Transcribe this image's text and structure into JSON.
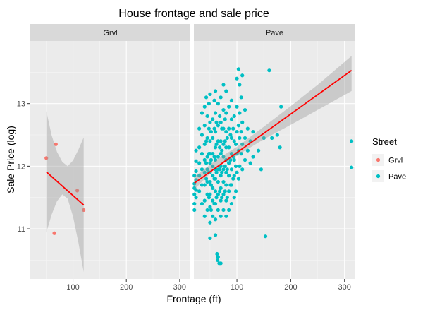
{
  "chart_data": {
    "type": "scatter",
    "title": "House frontage and sale price",
    "xlabel": "Frontage (ft)",
    "ylabel": "Sale Price (log)",
    "xlim": [
      20,
      320
    ],
    "ylim": [
      10.2,
      14.0
    ],
    "x_ticks": [
      100,
      200,
      300
    ],
    "y_ticks": [
      11,
      12,
      13
    ],
    "grid": true,
    "facet_by": "Street",
    "legend": {
      "title": "Street",
      "position": "right",
      "items": [
        {
          "label": "Grvl",
          "color": "#F8766D"
        },
        {
          "label": "Pave",
          "color": "#00BFC4"
        }
      ]
    },
    "panels": [
      {
        "label": "Grvl",
        "point_color": "#F8766D",
        "points": [
          [
            50,
            12.13
          ],
          [
            68,
            12.35
          ],
          [
            65,
            10.93
          ],
          [
            108,
            11.61
          ],
          [
            120,
            11.3
          ]
        ],
        "fit": {
          "color": "#FF0000",
          "x": [
            50,
            120
          ],
          "y": [
            11.91,
            11.38
          ]
        },
        "band": {
          "x": [
            50,
            60,
            70,
            80,
            90,
            100,
            110,
            120
          ],
          "low": [
            10.94,
            11.23,
            11.44,
            11.55,
            11.48,
            11.2,
            10.79,
            10.31
          ],
          "high": [
            12.88,
            12.49,
            12.23,
            12.07,
            12.0,
            12.09,
            12.26,
            12.46
          ]
        }
      },
      {
        "label": "Pave",
        "point_color": "#00BFC4",
        "points": [
          [
            21,
            11.3
          ],
          [
            21,
            11.4
          ],
          [
            21,
            11.55
          ],
          [
            21,
            11.65
          ],
          [
            21,
            11.72
          ],
          [
            21,
            11.85
          ],
          [
            24,
            11.5
          ],
          [
            24,
            11.62
          ],
          [
            24,
            11.78
          ],
          [
            24,
            11.92
          ],
          [
            24,
            12.08
          ],
          [
            24,
            12.25
          ],
          [
            30,
            11.6
          ],
          [
            30,
            11.85
          ],
          [
            30,
            12.05
          ],
          [
            30,
            12.3
          ],
          [
            30,
            12.6
          ],
          [
            35,
            11.4
          ],
          [
            35,
            11.7
          ],
          [
            35,
            11.95
          ],
          [
            35,
            12.2
          ],
          [
            35,
            12.5
          ],
          [
            35,
            12.85
          ],
          [
            40,
            11.2
          ],
          [
            40,
            11.45
          ],
          [
            40,
            11.7
          ],
          [
            40,
            11.9
          ],
          [
            40,
            12.1
          ],
          [
            40,
            12.35
          ],
          [
            40,
            12.65
          ],
          [
            40,
            12.95
          ],
          [
            43,
            11.8
          ],
          [
            43,
            12.05
          ],
          [
            43,
            12.4
          ],
          [
            43,
            13.1
          ],
          [
            45,
            11.3
          ],
          [
            45,
            11.55
          ],
          [
            45,
            11.75
          ],
          [
            45,
            11.95
          ],
          [
            45,
            12.15
          ],
          [
            45,
            12.45
          ],
          [
            45,
            12.8
          ],
          [
            48,
            11.5
          ],
          [
            48,
            11.9
          ],
          [
            48,
            12.2
          ],
          [
            48,
            12.6
          ],
          [
            48,
            13.0
          ],
          [
            50,
            10.85
          ],
          [
            50,
            11.1
          ],
          [
            50,
            11.35
          ],
          [
            50,
            11.55
          ],
          [
            50,
            11.75
          ],
          [
            50,
            11.9
          ],
          [
            50,
            12.05
          ],
          [
            50,
            12.2
          ],
          [
            50,
            12.4
          ],
          [
            50,
            12.7
          ],
          [
            50,
            13.15
          ],
          [
            52,
            11.3
          ],
          [
            52,
            11.7
          ],
          [
            52,
            12.1
          ],
          [
            52,
            12.55
          ],
          [
            55,
            11.2
          ],
          [
            55,
            11.45
          ],
          [
            55,
            11.65
          ],
          [
            55,
            11.85
          ],
          [
            55,
            12.0
          ],
          [
            55,
            12.2
          ],
          [
            55,
            12.45
          ],
          [
            55,
            12.75
          ],
          [
            58,
            11.4
          ],
          [
            58,
            11.8
          ],
          [
            58,
            12.15
          ],
          [
            58,
            12.6
          ],
          [
            58,
            13.05
          ],
          [
            60,
            10.9
          ],
          [
            60,
            11.15
          ],
          [
            60,
            11.4
          ],
          [
            60,
            11.6
          ],
          [
            60,
            11.8
          ],
          [
            60,
            11.95
          ],
          [
            60,
            12.1
          ],
          [
            60,
            12.3
          ],
          [
            60,
            12.55
          ],
          [
            60,
            12.85
          ],
          [
            60,
            13.2
          ],
          [
            62,
            11.5
          ],
          [
            62,
            11.9
          ],
          [
            62,
            12.35
          ],
          [
            62,
            12.7
          ],
          [
            63,
            10.6
          ],
          [
            64,
            10.5
          ],
          [
            65,
            10.55
          ],
          [
            67,
            10.45
          ],
          [
            70,
            10.45
          ],
          [
            65,
            11.3
          ],
          [
            65,
            11.55
          ],
          [
            65,
            11.75
          ],
          [
            65,
            11.95
          ],
          [
            65,
            12.15
          ],
          [
            65,
            12.4
          ],
          [
            65,
            12.65
          ],
          [
            65,
            13.0
          ],
          [
            68,
            11.6
          ],
          [
            68,
            11.95
          ],
          [
            68,
            12.3
          ],
          [
            68,
            12.8
          ],
          [
            70,
            11.2
          ],
          [
            70,
            11.45
          ],
          [
            70,
            11.65
          ],
          [
            70,
            11.85
          ],
          [
            70,
            12.0
          ],
          [
            70,
            12.2
          ],
          [
            70,
            12.4
          ],
          [
            70,
            12.7
          ],
          [
            70,
            13.1
          ],
          [
            72,
            11.5
          ],
          [
            72,
            11.9
          ],
          [
            72,
            12.25
          ],
          [
            72,
            12.6
          ],
          [
            75,
            11.3
          ],
          [
            75,
            11.55
          ],
          [
            75,
            11.75
          ],
          [
            75,
            11.95
          ],
          [
            75,
            12.15
          ],
          [
            75,
            12.35
          ],
          [
            75,
            12.6
          ],
          [
            75,
            12.9
          ],
          [
            75,
            13.3
          ],
          [
            78,
            11.6
          ],
          [
            78,
            12.0
          ],
          [
            78,
            12.4
          ],
          [
            78,
            12.75
          ],
          [
            80,
            11.2
          ],
          [
            80,
            11.45
          ],
          [
            80,
            11.7
          ],
          [
            80,
            11.9
          ],
          [
            80,
            12.1
          ],
          [
            80,
            12.3
          ],
          [
            80,
            12.55
          ],
          [
            80,
            12.85
          ],
          [
            80,
            13.2
          ],
          [
            82,
            11.5
          ],
          [
            82,
            11.95
          ],
          [
            82,
            12.45
          ],
          [
            85,
            11.3
          ],
          [
            85,
            11.6
          ],
          [
            85,
            11.85
          ],
          [
            85,
            12.05
          ],
          [
            85,
            12.3
          ],
          [
            85,
            12.6
          ],
          [
            85,
            12.95
          ],
          [
            88,
            11.7
          ],
          [
            88,
            12.1
          ],
          [
            88,
            12.5
          ],
          [
            90,
            11.4
          ],
          [
            90,
            11.7
          ],
          [
            90,
            11.95
          ],
          [
            90,
            12.2
          ],
          [
            90,
            12.45
          ],
          [
            90,
            12.75
          ],
          [
            90,
            13.05
          ],
          [
            93,
            11.8
          ],
          [
            93,
            12.15
          ],
          [
            93,
            12.6
          ],
          [
            95,
            11.5
          ],
          [
            95,
            11.85
          ],
          [
            95,
            12.1
          ],
          [
            95,
            12.4
          ],
          [
            95,
            12.8
          ],
          [
            98,
            11.6
          ],
          [
            98,
            12.0
          ],
          [
            98,
            12.35
          ],
          [
            100,
            11.9
          ],
          [
            100,
            12.2
          ],
          [
            100,
            12.55
          ],
          [
            100,
            12.95
          ],
          [
            100,
            13.4
          ],
          [
            103,
            11.8
          ],
          [
            103,
            12.25
          ],
          [
            103,
            12.65
          ],
          [
            103,
            13.55
          ],
          [
            105,
            12.0
          ],
          [
            105,
            12.45
          ],
          [
            105,
            12.85
          ],
          [
            105,
            13.3
          ],
          [
            108,
            12.2
          ],
          [
            108,
            12.55
          ],
          [
            108,
            13.1
          ],
          [
            110,
            11.95
          ],
          [
            110,
            12.35
          ],
          [
            110,
            12.7
          ],
          [
            110,
            13.45
          ],
          [
            115,
            12.1
          ],
          [
            115,
            12.45
          ],
          [
            115,
            12.9
          ],
          [
            120,
            12.25
          ],
          [
            120,
            12.6
          ],
          [
            125,
            12.05
          ],
          [
            125,
            12.4
          ],
          [
            130,
            12.15
          ],
          [
            130,
            12.55
          ],
          [
            140,
            12.25
          ],
          [
            145,
            11.95
          ],
          [
            150,
            12.45
          ],
          [
            153,
            10.88
          ],
          [
            160,
            13.53
          ],
          [
            165,
            12.45
          ],
          [
            175,
            12.5
          ],
          [
            180,
            12.3
          ],
          [
            182,
            12.95
          ],
          [
            313,
            12.4
          ],
          [
            313,
            11.98
          ]
        ],
        "fit": {
          "color": "#FF0000",
          "x": [
            21,
            313
          ],
          "y": [
            11.73,
            13.53
          ]
        },
        "band": {
          "x": [
            21,
            60,
            100,
            150,
            200,
            250,
            313
          ],
          "low": [
            11.63,
            11.97,
            12.17,
            12.43,
            12.66,
            12.9,
            13.2
          ],
          "high": [
            11.83,
            12.09,
            12.31,
            12.63,
            12.96,
            13.3,
            13.76
          ]
        }
      }
    ]
  }
}
